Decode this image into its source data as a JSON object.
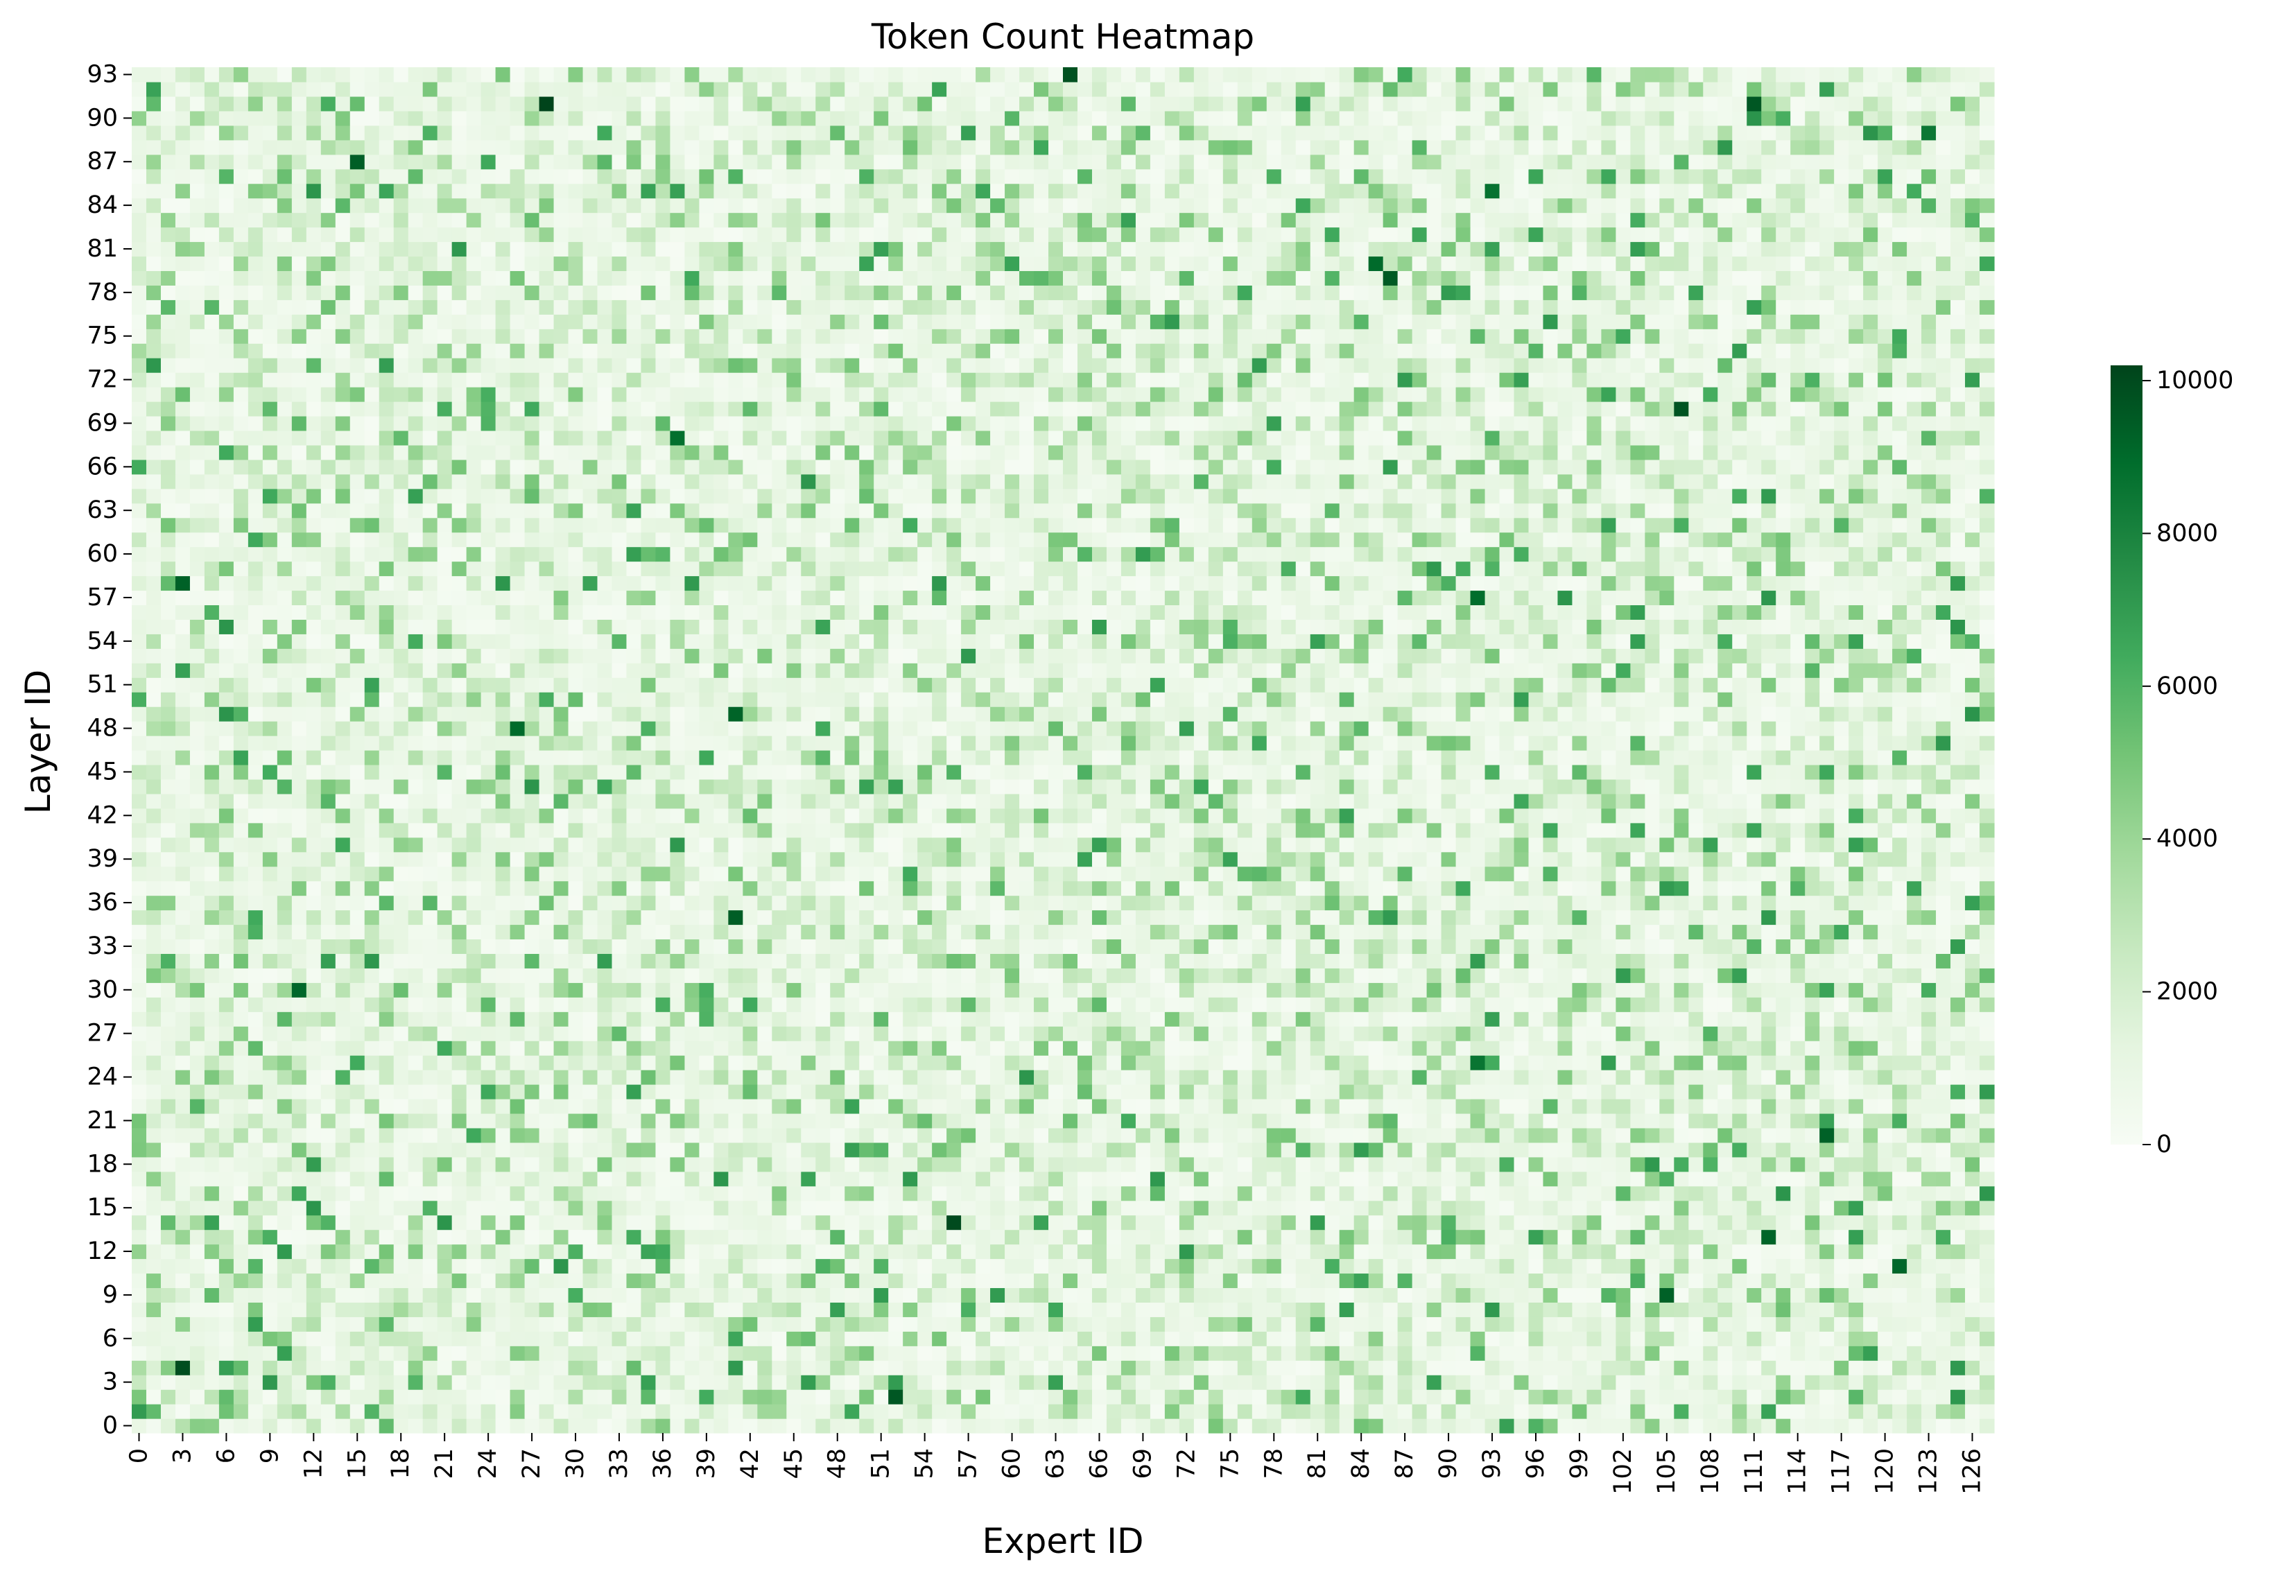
{
  "chart_data": {
    "type": "heatmap",
    "title": "Token Count Heatmap",
    "xlabel": "Expert ID",
    "ylabel": "Layer ID",
    "x_range": [
      0,
      127
    ],
    "y_range": [
      0,
      93
    ],
    "x_tick_labels": [
      "0",
      "3",
      "6",
      "9",
      "12",
      "15",
      "18",
      "21",
      "24",
      "27",
      "30",
      "33",
      "36",
      "39",
      "42",
      "45",
      "48",
      "51",
      "54",
      "57",
      "60",
      "63",
      "66",
      "69",
      "72",
      "75",
      "78",
      "81",
      "84",
      "87",
      "90",
      "93",
      "96",
      "99",
      "102",
      "105",
      "108",
      "111",
      "114",
      "117",
      "120",
      "123",
      "126"
    ],
    "y_tick_labels": [
      "0",
      "3",
      "6",
      "9",
      "12",
      "15",
      "18",
      "21",
      "24",
      "27",
      "30",
      "33",
      "36",
      "39",
      "42",
      "45",
      "48",
      "51",
      "54",
      "57",
      "60",
      "63",
      "66",
      "69",
      "72",
      "75",
      "78",
      "81",
      "84",
      "87",
      "90",
      "93"
    ],
    "colormap": "Greens",
    "color_low": "#f7fcf5",
    "color_high": "#00441b",
    "colorbar": {
      "min": 0,
      "max": 10200,
      "ticks": [
        "0",
        "2000",
        "4000",
        "6000",
        "8000",
        "10000"
      ],
      "placement": "right"
    },
    "grid": false,
    "cell_values_note": "",
    "hotspots": [
      {
        "expert": 64,
        "layer": 93,
        "value": 9800
      },
      {
        "expert": 28,
        "layer": 91,
        "value": 10200
      },
      {
        "expert": 111,
        "layer": 91,
        "value": 9600
      },
      {
        "expert": 15,
        "layer": 87,
        "value": 9400
      },
      {
        "expert": 86,
        "layer": 79,
        "value": 9500
      },
      {
        "expert": 85,
        "layer": 80,
        "value": 9000
      },
      {
        "expert": 106,
        "layer": 70,
        "value": 9700
      },
      {
        "expert": 37,
        "layer": 68,
        "value": 8800
      },
      {
        "expert": 3,
        "layer": 58,
        "value": 9300
      },
      {
        "expert": 41,
        "layer": 49,
        "value": 9200
      },
      {
        "expert": 26,
        "layer": 48,
        "value": 9000
      },
      {
        "expert": 41,
        "layer": 35,
        "value": 9400
      },
      {
        "expert": 11,
        "layer": 30,
        "value": 9100
      },
      {
        "expert": 116,
        "layer": 20,
        "value": 9300
      },
      {
        "expert": 56,
        "layer": 14,
        "value": 10000
      },
      {
        "expert": 112,
        "layer": 13,
        "value": 9200
      },
      {
        "expert": 121,
        "layer": 11,
        "value": 9100
      },
      {
        "expert": 105,
        "layer": 9,
        "value": 9300
      },
      {
        "expert": 3,
        "layer": 4,
        "value": 9900
      },
      {
        "expert": 52,
        "layer": 2,
        "value": 9600
      },
      {
        "expert": 92,
        "layer": 57,
        "value": 8900
      },
      {
        "expert": 93,
        "layer": 85,
        "value": 8700
      },
      {
        "expert": 92,
        "layer": 25,
        "value": 8600
      },
      {
        "expert": 123,
        "layer": 89,
        "value": 8500
      }
    ]
  }
}
